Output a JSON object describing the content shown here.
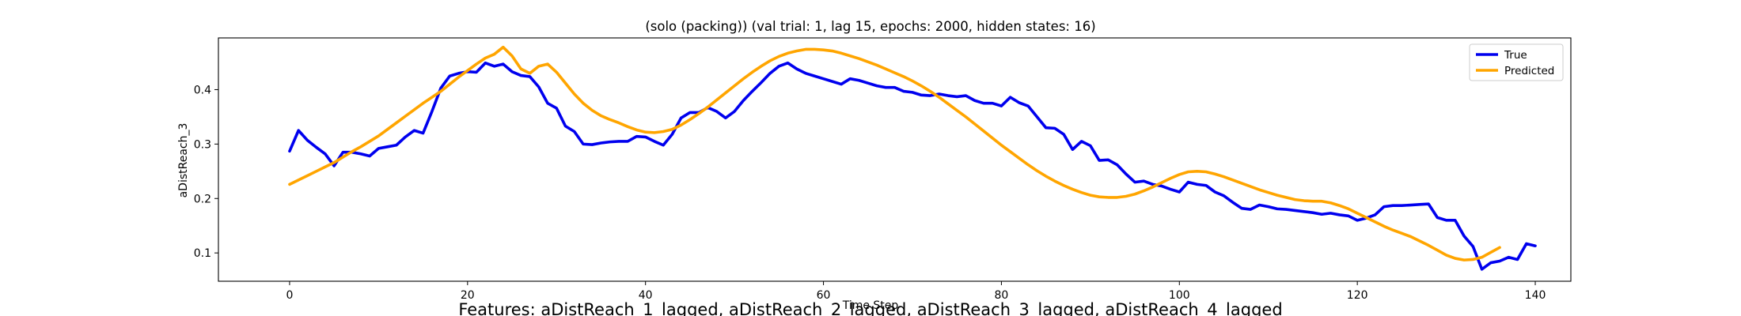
{
  "caption": "Features: aDistReach_1_lagged, aDistReach_2_lagged, aDistReach_3_lagged, aDistReach_4_lagged",
  "chart_data": {
    "type": "line",
    "title": "(solo (packing)) (val trial: 1, lag 15, epochs: 2000, hidden states: 16)",
    "xlabel": "Time Step",
    "ylabel": "aDistReach_3",
    "xlim": [
      -8,
      144
    ],
    "ylim": [
      0.048,
      0.495
    ],
    "xticks": [
      0,
      20,
      40,
      60,
      80,
      100,
      120,
      140
    ],
    "yticks": [
      0.1,
      0.2,
      0.3,
      0.4
    ],
    "ytick_labels": [
      "0.1",
      "0.2",
      "0.3",
      "0.4"
    ],
    "grid": false,
    "legend_position": "top-right",
    "series": [
      {
        "name": "True",
        "color": "#0000ee",
        "values": [
          0.287,
          0.325,
          0.307,
          0.294,
          0.282,
          0.26,
          0.285,
          0.285,
          0.282,
          0.278,
          0.292,
          0.295,
          0.298,
          0.313,
          0.325,
          0.32,
          0.36,
          0.403,
          0.425,
          0.43,
          0.433,
          0.432,
          0.449,
          0.443,
          0.447,
          0.433,
          0.426,
          0.424,
          0.405,
          0.375,
          0.366,
          0.333,
          0.323,
          0.3,
          0.299,
          0.302,
          0.304,
          0.305,
          0.305,
          0.314,
          0.313,
          0.305,
          0.298,
          0.318,
          0.348,
          0.358,
          0.358,
          0.367,
          0.36,
          0.348,
          0.36,
          0.38,
          0.397,
          0.413,
          0.43,
          0.443,
          0.449,
          0.438,
          0.43,
          0.425,
          0.42,
          0.415,
          0.41,
          0.42,
          0.417,
          0.412,
          0.407,
          0.404,
          0.404,
          0.397,
          0.395,
          0.39,
          0.389,
          0.392,
          0.389,
          0.387,
          0.389,
          0.38,
          0.375,
          0.375,
          0.37,
          0.386,
          0.376,
          0.37,
          0.35,
          0.33,
          0.329,
          0.318,
          0.29,
          0.305,
          0.297,
          0.27,
          0.271,
          0.262,
          0.245,
          0.23,
          0.232,
          0.226,
          0.223,
          0.217,
          0.212,
          0.23,
          0.226,
          0.224,
          0.212,
          0.205,
          0.193,
          0.182,
          0.18,
          0.188,
          0.185,
          0.181,
          0.18,
          0.178,
          0.176,
          0.174,
          0.171,
          0.173,
          0.17,
          0.168,
          0.16,
          0.164,
          0.17,
          0.185,
          0.187,
          0.187,
          0.188,
          0.189,
          0.19,
          0.165,
          0.16,
          0.16,
          0.131,
          0.112,
          0.07,
          0.082,
          0.085,
          0.092,
          0.088,
          0.117,
          0.113
        ]
      },
      {
        "name": "Predicted",
        "color": "#ffa500",
        "values": [
          0.226,
          0.234,
          0.242,
          0.25,
          0.258,
          0.266,
          0.276,
          0.286,
          0.295,
          0.305,
          0.315,
          0.327,
          0.339,
          0.351,
          0.363,
          0.375,
          0.386,
          0.397,
          0.41,
          0.423,
          0.435,
          0.447,
          0.458,
          0.465,
          0.478,
          0.462,
          0.438,
          0.43,
          0.443,
          0.447,
          0.432,
          0.412,
          0.392,
          0.375,
          0.362,
          0.352,
          0.345,
          0.339,
          0.332,
          0.326,
          0.322,
          0.321,
          0.323,
          0.327,
          0.335,
          0.345,
          0.356,
          0.368,
          0.381,
          0.394,
          0.407,
          0.42,
          0.432,
          0.443,
          0.453,
          0.461,
          0.467,
          0.471,
          0.474,
          0.474,
          0.473,
          0.471,
          0.467,
          0.462,
          0.457,
          0.451,
          0.445,
          0.438,
          0.431,
          0.424,
          0.416,
          0.407,
          0.397,
          0.386,
          0.374,
          0.362,
          0.35,
          0.337,
          0.324,
          0.311,
          0.298,
          0.286,
          0.274,
          0.262,
          0.251,
          0.241,
          0.232,
          0.224,
          0.217,
          0.211,
          0.206,
          0.203,
          0.202,
          0.202,
          0.204,
          0.208,
          0.214,
          0.221,
          0.229,
          0.237,
          0.244,
          0.249,
          0.25,
          0.249,
          0.245,
          0.24,
          0.234,
          0.228,
          0.222,
          0.216,
          0.211,
          0.206,
          0.202,
          0.198,
          0.196,
          0.195,
          0.195,
          0.192,
          0.187,
          0.181,
          0.173,
          0.165,
          0.157,
          0.149,
          0.142,
          0.136,
          0.13,
          0.122,
          0.114,
          0.105,
          0.096,
          0.09,
          0.087,
          0.088,
          0.092,
          0.101,
          0.11
        ]
      }
    ]
  }
}
